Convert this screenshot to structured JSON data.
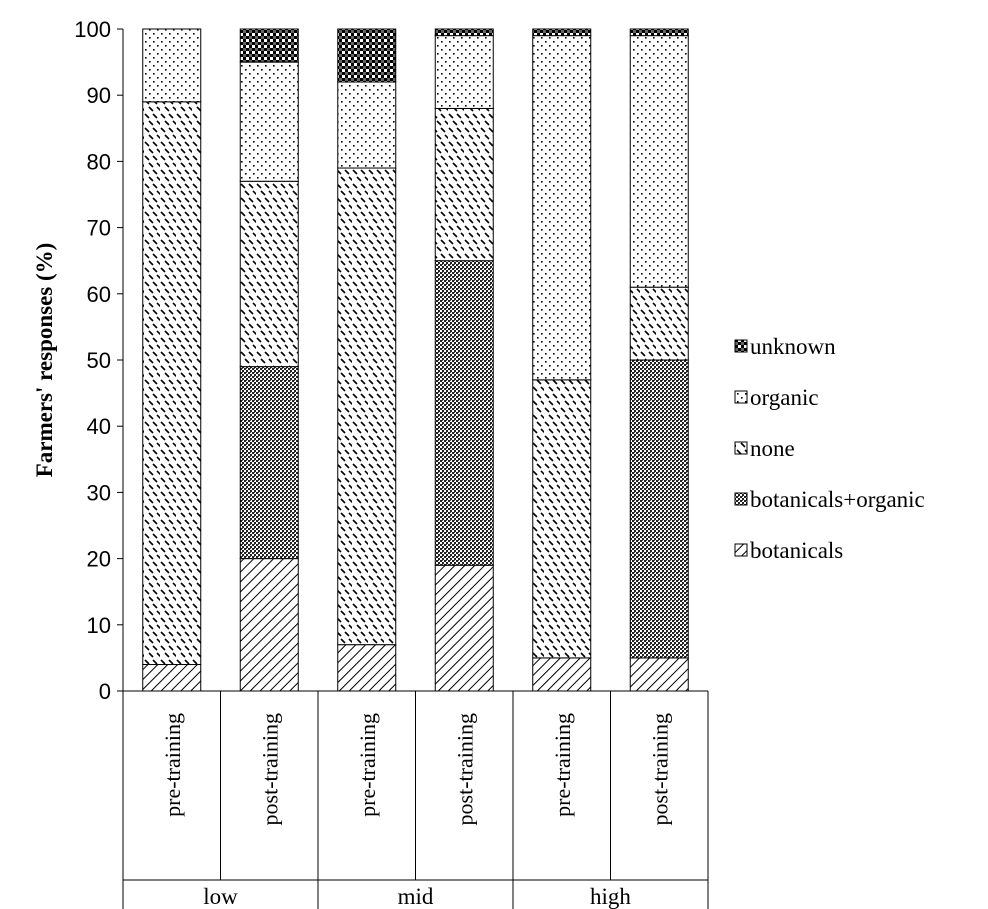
{
  "chart_data": {
    "type": "bar",
    "stacked": true,
    "title": "",
    "xlabel": "",
    "ylabel": "Farmers' responses (%)",
    "ylim": [
      0,
      100
    ],
    "yticks": [
      "0",
      "10",
      "20",
      "30",
      "40",
      "50",
      "60",
      "70",
      "80",
      "90",
      "100"
    ],
    "grid": false,
    "legend_position": "right",
    "groups": [
      "low",
      "mid",
      "high"
    ],
    "categories": [
      "pre-training",
      "post-training",
      "pre-training",
      "post-training",
      "pre-training",
      "post-training"
    ],
    "series": [
      {
        "name": "botanicals",
        "pattern": "diagonal-lines",
        "values": [
          4,
          20,
          7,
          19,
          5,
          5
        ]
      },
      {
        "name": "botanicals+organic",
        "pattern": "dense-crosshatch",
        "values": [
          0,
          29,
          0,
          46,
          0,
          45
        ]
      },
      {
        "name": "none",
        "pattern": "dashed-diagonal",
        "values": [
          85,
          28,
          72,
          23,
          42,
          11
        ]
      },
      {
        "name": "organic",
        "pattern": "sparse-dots",
        "values": [
          11,
          18,
          13,
          11,
          52,
          38
        ]
      },
      {
        "name": "unknown",
        "pattern": "checker",
        "values": [
          0,
          5,
          8,
          1,
          1,
          1
        ]
      }
    ],
    "legend_order": [
      "unknown",
      "organic",
      "none",
      "botanicals+organic",
      "botanicals"
    ]
  }
}
